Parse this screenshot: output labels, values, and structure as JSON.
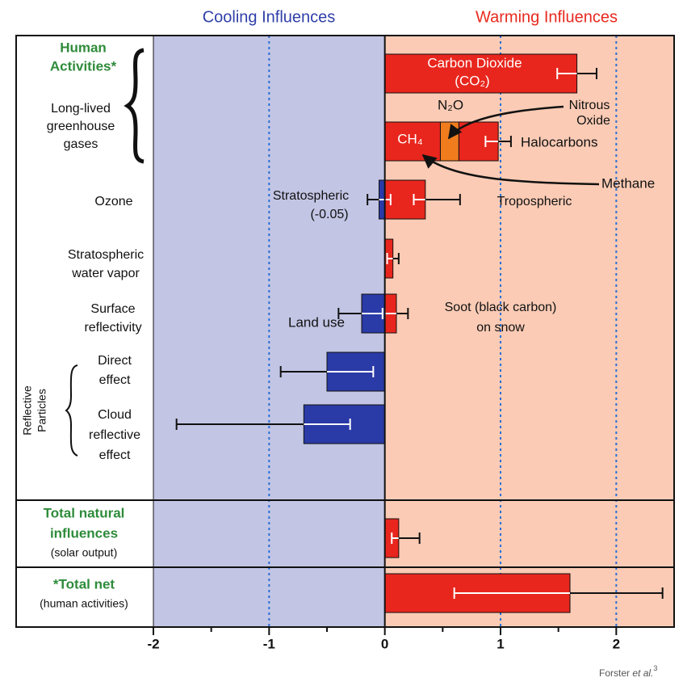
{
  "chart_data": {
    "type": "bar",
    "orientation": "horizontal",
    "cooling_title": "Cooling Influences",
    "cooling_color": "#2f3fa8",
    "cooling_bg": "#c2c5e4",
    "warming_title": "Warming Influences",
    "warming_color": "#e8291f",
    "warming_bg": "#fbcbb5",
    "label_color": "#2e8b3a",
    "xlim": [
      -2,
      2.5
    ],
    "xticks": [
      -2,
      -1,
      0,
      1,
      2
    ],
    "xminorticks": [
      -1.5,
      -0.5,
      0.5,
      1.5
    ],
    "grid": true,
    "grid_color": "#2a6fd6",
    "group_labels": {
      "human": [
        "Human",
        "Activities*"
      ],
      "llghg": [
        "Long-lived",
        "greenhouse",
        "gases"
      ],
      "particles": [
        "Reflective",
        "Particles"
      ]
    },
    "rows": [
      {
        "values": [
          1.66
        ],
        "colors": [
          "#e8261d"
        ],
        "errors": [
          [
            1.49,
            1.83
          ]
        ]
      },
      {
        "values": [
          0.48,
          0.16,
          0.34
        ],
        "colors": [
          "#e8261d",
          "#f07c1e",
          "#e8261d"
        ],
        "errors": [
          [
            0.87,
            1.09
          ]
        ]
      },
      {
        "label": [
          "Ozone"
        ],
        "values": [
          -0.05,
          0.35
        ],
        "colors": [
          "#2a3aa6",
          "#e8261d"
        ],
        "errors": [
          [
            -0.15,
            0.05
          ],
          [
            0.25,
            0.65
          ]
        ]
      },
      {
        "label": [
          "Stratospheric",
          "water vapor"
        ],
        "values": [
          0.07
        ],
        "colors": [
          "#e8261d"
        ],
        "errors": [
          [
            0.02,
            0.12
          ]
        ]
      },
      {
        "label": [
          "Surface",
          "reflectivity"
        ],
        "values": [
          -0.2,
          0.1
        ],
        "colors": [
          "#2a3aa6",
          "#e8261d"
        ],
        "errors": [
          [
            -0.4,
            -0.02
          ],
          [
            0.0,
            0.2
          ]
        ]
      },
      {
        "label": [
          "Direct",
          "effect"
        ],
        "values": [
          -0.5
        ],
        "colors": [
          "#2a3aa6"
        ],
        "errors": [
          [
            -0.9,
            -0.1
          ]
        ]
      },
      {
        "label": [
          "Cloud",
          "reflective",
          "effect"
        ],
        "values": [
          -0.7
        ],
        "colors": [
          "#2a3aa6"
        ],
        "errors": [
          [
            -1.8,
            -0.3
          ]
        ]
      },
      {
        "label": [
          "Total natural",
          "influences"
        ],
        "sublabel": [
          "(solar output)"
        ],
        "values": [
          0.12
        ],
        "colors": [
          "#e8261d"
        ],
        "errors": [
          [
            0.06,
            0.3
          ]
        ]
      },
      {
        "label": [
          "*Total net"
        ],
        "sublabel": [
          "(human activities)"
        ],
        "values": [
          1.6
        ],
        "colors": [
          "#e8261d"
        ],
        "errors": [
          [
            0.6,
            2.4
          ]
        ]
      }
    ],
    "annotations": {
      "co2": [
        "Carbon Dioxide",
        "(CO₂)"
      ],
      "ch4": "CH₄",
      "n2o": "N₂O",
      "nitrous": [
        "Nitrous",
        "Oxide"
      ],
      "halocarbons": "Halocarbons",
      "methane": "Methane",
      "strat_ozone": [
        "Stratospheric",
        "(-0.05)"
      ],
      "trop_ozone": "Tropospheric",
      "land_use": "Land use",
      "soot": [
        "Soot (black carbon)",
        "on snow"
      ]
    },
    "source_author": "Forster",
    "source_etal": "et al.",
    "source_ref": "3"
  }
}
